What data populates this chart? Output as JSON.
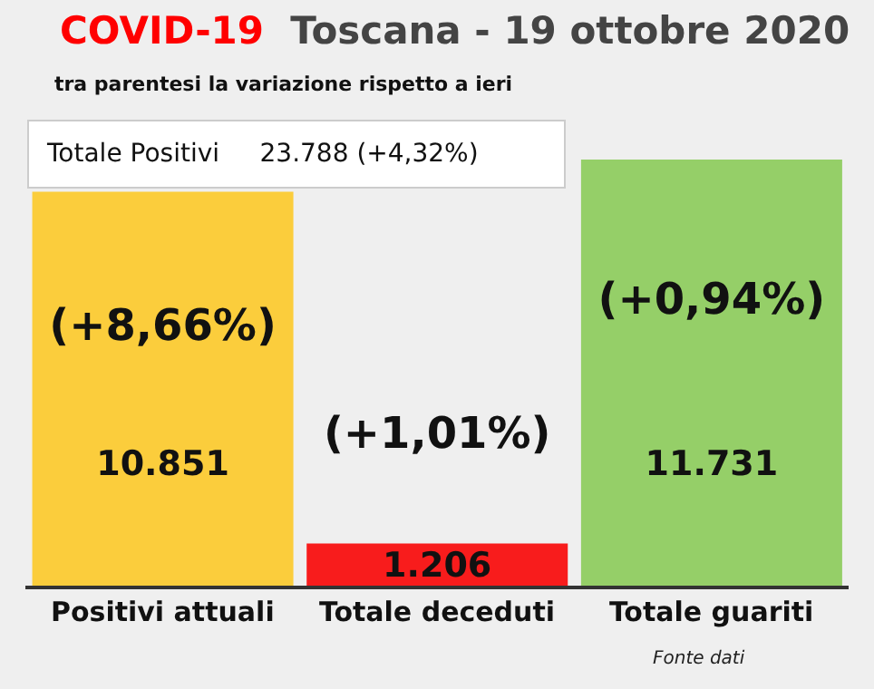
{
  "chart_data": {
    "type": "bar",
    "title": "COVID-19  Toscana - 19 ottobre 2020",
    "subtitle": "tra parentesi la variazione rispetto a ieri",
    "categories": [
      "Positivi attuali",
      "Totale deceduti",
      "Totale guariti"
    ],
    "values": [
      10851,
      1206,
      11731
    ],
    "colors": [
      "#fbcd3c",
      "#f81c1c",
      "#95cf68"
    ],
    "value_labels": [
      "10.851",
      "1.206",
      "11.731"
    ],
    "annotations": [
      "Totale Positivi     23.788 (+4,32%)",
      "(+8,66%)",
      "(+1,01%)",
      "(+0,94%)",
      "Fonte dati"
    ]
  }
}
